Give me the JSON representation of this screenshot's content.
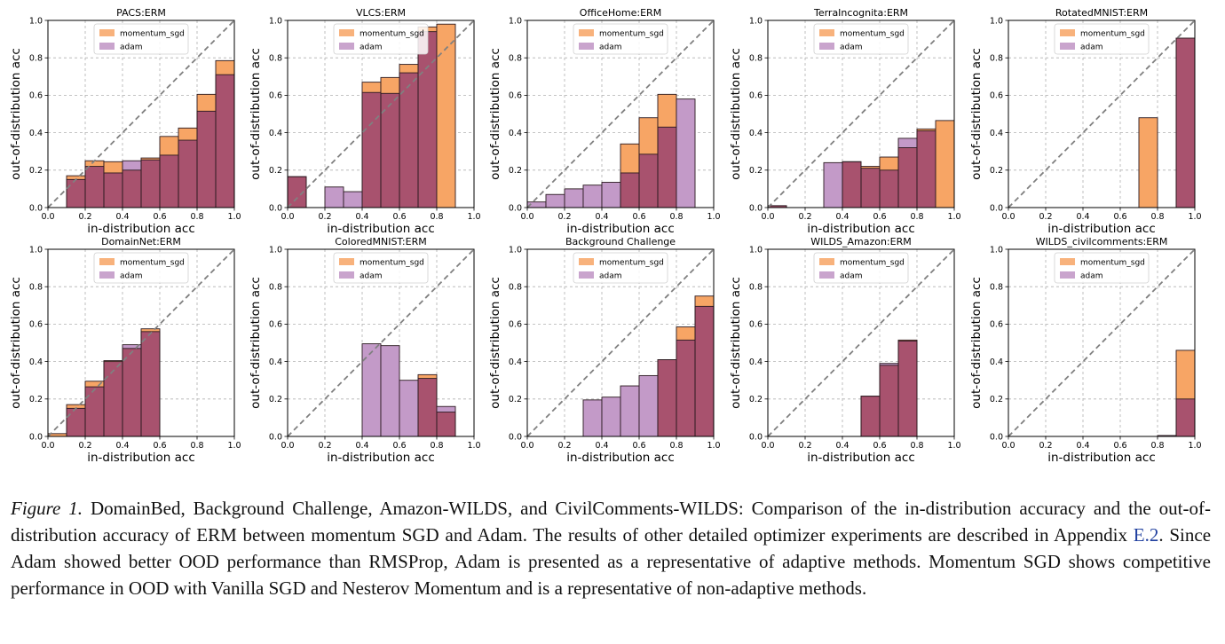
{
  "colors": {
    "momentum_sgd": "#f7a565",
    "adam": "#c39ac8",
    "overlap": "#a8526e",
    "diagonal": "#808080",
    "grid": "#b0b0b0",
    "bar_edge": "#2b1a20"
  },
  "axes_text": {
    "xlabel": "in-distribution acc",
    "ylabel": "out-of-distribution acc",
    "ticks": [
      "0.0",
      "0.2",
      "0.4",
      "0.6",
      "0.8",
      "1.0"
    ],
    "legend": [
      "momentum_sgd",
      "adam"
    ]
  },
  "chart_data": [
    {
      "type": "bar",
      "title": "PACS:ERM",
      "xlim": [
        0,
        1
      ],
      "ylim": [
        0,
        1
      ],
      "bin_width": 0.1,
      "series": [
        {
          "name": "momentum_sgd",
          "bins": [
            [
              0.2,
              0.17
            ],
            [
              0.3,
              0.25
            ],
            [
              0.4,
              0.245
            ],
            [
              0.5,
              0.2
            ],
            [
              0.6,
              0.265
            ],
            [
              0.7,
              0.38
            ],
            [
              0.8,
              0.425
            ],
            [
              0.9,
              0.605
            ],
            [
              1.0,
              0.785
            ]
          ]
        },
        {
          "name": "adam",
          "bins": [
            [
              0.2,
              0.15
            ],
            [
              0.3,
              0.22
            ],
            [
              0.4,
              0.185
            ],
            [
              0.5,
              0.25
            ],
            [
              0.6,
              0.255
            ],
            [
              0.7,
              0.28
            ],
            [
              0.8,
              0.36
            ],
            [
              0.9,
              0.515
            ],
            [
              1.0,
              0.71
            ]
          ]
        }
      ]
    },
    {
      "type": "bar",
      "title": "VLCS:ERM",
      "xlim": [
        0,
        1
      ],
      "ylim": [
        0,
        1
      ],
      "bin_width": 0.1,
      "series": [
        {
          "name": "momentum_sgd",
          "bins": [
            [
              0.1,
              0.165
            ],
            [
              0.5,
              0.67
            ],
            [
              0.6,
              0.695
            ],
            [
              0.7,
              0.765
            ],
            [
              0.8,
              0.965
            ],
            [
              0.9,
              0.98
            ]
          ]
        },
        {
          "name": "adam",
          "bins": [
            [
              0.1,
              0.165
            ],
            [
              0.3,
              0.11
            ],
            [
              0.4,
              0.085
            ],
            [
              0.5,
              0.615
            ],
            [
              0.6,
              0.61
            ],
            [
              0.7,
              0.72
            ],
            [
              0.8,
              0.94
            ]
          ]
        }
      ]
    },
    {
      "type": "bar",
      "title": "OfficeHome:ERM",
      "xlim": [
        0,
        1
      ],
      "ylim": [
        0,
        1
      ],
      "bin_width": 0.1,
      "series": [
        {
          "name": "momentum_sgd",
          "bins": [
            [
              0.6,
              0.34
            ],
            [
              0.7,
              0.48
            ],
            [
              0.8,
              0.605
            ]
          ]
        },
        {
          "name": "adam",
          "bins": [
            [
              0.1,
              0.03
            ],
            [
              0.2,
              0.07
            ],
            [
              0.3,
              0.1
            ],
            [
              0.4,
              0.12
            ],
            [
              0.5,
              0.135
            ],
            [
              0.6,
              0.185
            ],
            [
              0.7,
              0.285
            ],
            [
              0.8,
              0.43
            ],
            [
              0.9,
              0.58
            ]
          ]
        }
      ]
    },
    {
      "type": "bar",
      "title": "TerraIncognita:ERM",
      "xlim": [
        0,
        1
      ],
      "ylim": [
        0,
        1
      ],
      "bin_width": 0.1,
      "series": [
        {
          "name": "momentum_sgd",
          "bins": [
            [
              0.1,
              0.01
            ],
            [
              0.5,
              0.245
            ],
            [
              0.6,
              0.22
            ],
            [
              0.7,
              0.27
            ],
            [
              0.8,
              0.32
            ],
            [
              0.9,
              0.42
            ],
            [
              1.0,
              0.465
            ]
          ]
        },
        {
          "name": "adam",
          "bins": [
            [
              0.1,
              0.01
            ],
            [
              0.4,
              0.24
            ],
            [
              0.5,
              0.245
            ],
            [
              0.6,
              0.21
            ],
            [
              0.7,
              0.2
            ],
            [
              0.8,
              0.37
            ],
            [
              0.9,
              0.41
            ]
          ]
        }
      ]
    },
    {
      "type": "bar",
      "title": "RotatedMNIST:ERM",
      "xlim": [
        0,
        1
      ],
      "ylim": [
        0,
        1
      ],
      "bin_width": 0.1,
      "series": [
        {
          "name": "momentum_sgd",
          "bins": [
            [
              0.8,
              0.48
            ],
            [
              1.0,
              0.905
            ]
          ]
        },
        {
          "name": "adam",
          "bins": [
            [
              1.0,
              0.905
            ]
          ]
        }
      ]
    },
    {
      "type": "bar",
      "title": "DomainNet:ERM",
      "xlim": [
        0,
        1
      ],
      "ylim": [
        0,
        1
      ],
      "bin_width": 0.1,
      "series": [
        {
          "name": "momentum_sgd",
          "bins": [
            [
              0.1,
              0.015
            ],
            [
              0.2,
              0.17
            ],
            [
              0.3,
              0.295
            ],
            [
              0.4,
              0.405
            ],
            [
              0.5,
              0.47
            ],
            [
              0.6,
              0.575
            ]
          ]
        },
        {
          "name": "adam",
          "bins": [
            [
              0.2,
              0.15
            ],
            [
              0.3,
              0.265
            ],
            [
              0.4,
              0.4
            ],
            [
              0.5,
              0.49
            ],
            [
              0.6,
              0.56
            ]
          ]
        }
      ]
    },
    {
      "type": "bar",
      "title": "ColoredMNIST:ERM",
      "xlim": [
        0,
        1
      ],
      "ylim": [
        0,
        1
      ],
      "bin_width": 0.1,
      "series": [
        {
          "name": "momentum_sgd",
          "bins": [
            [
              0.8,
              0.33
            ],
            [
              0.9,
              0.13
            ]
          ]
        },
        {
          "name": "adam",
          "bins": [
            [
              0.5,
              0.495
            ],
            [
              0.6,
              0.485
            ],
            [
              0.7,
              0.3
            ],
            [
              0.8,
              0.31
            ],
            [
              0.9,
              0.16
            ]
          ]
        }
      ]
    },
    {
      "type": "bar",
      "title": "Background Challenge",
      "xlim": [
        0,
        1
      ],
      "ylim": [
        0,
        1
      ],
      "bin_width": 0.1,
      "series": [
        {
          "name": "momentum_sgd",
          "bins": [
            [
              0.8,
              0.41
            ],
            [
              0.9,
              0.585
            ],
            [
              1.0,
              0.75
            ]
          ]
        },
        {
          "name": "adam",
          "bins": [
            [
              0.4,
              0.195
            ],
            [
              0.5,
              0.21
            ],
            [
              0.6,
              0.27
            ],
            [
              0.7,
              0.325
            ],
            [
              0.8,
              0.41
            ],
            [
              0.9,
              0.515
            ],
            [
              1.0,
              0.695
            ]
          ]
        }
      ]
    },
    {
      "type": "bar",
      "title": "WILDS_Amazon:ERM",
      "xlim": [
        0,
        1
      ],
      "ylim": [
        0,
        1
      ],
      "bin_width": 0.1,
      "series": [
        {
          "name": "momentum_sgd",
          "bins": [
            [
              0.6,
              0.215
            ],
            [
              0.7,
              0.38
            ],
            [
              0.8,
              0.515
            ]
          ]
        },
        {
          "name": "adam",
          "bins": [
            [
              0.6,
              0.215
            ],
            [
              0.7,
              0.39
            ],
            [
              0.8,
              0.51
            ]
          ]
        }
      ]
    },
    {
      "type": "bar",
      "title": "WILDS_civilcomments:ERM",
      "xlim": [
        0,
        1
      ],
      "ylim": [
        0,
        1
      ],
      "bin_width": 0.1,
      "series": [
        {
          "name": "momentum_sgd",
          "bins": [
            [
              1.0,
              0.46
            ]
          ]
        },
        {
          "name": "adam",
          "bins": [
            [
              0.9,
              0.005
            ],
            [
              1.0,
              0.2
            ]
          ]
        }
      ]
    }
  ],
  "caption": {
    "lead": "Figure 1.",
    "part1": " DomainBed, Background Challenge, Amazon-WILDS, and CivilComments-WILDS: Comparison of the in-distribution accuracy and the out-of-distribution accuracy of ERM between momentum SGD and Adam. The results of other detailed optimizer experiments are described in Appendix ",
    "link": "E.2",
    "part2": ". Since Adam showed better OOD performance than RMSProp, Adam is presented as a representative of adaptive methods. Momentum SGD shows competitive performance in OOD with Vanilla SGD and Nesterov Momentum and is a representative of non-adaptive methods."
  }
}
